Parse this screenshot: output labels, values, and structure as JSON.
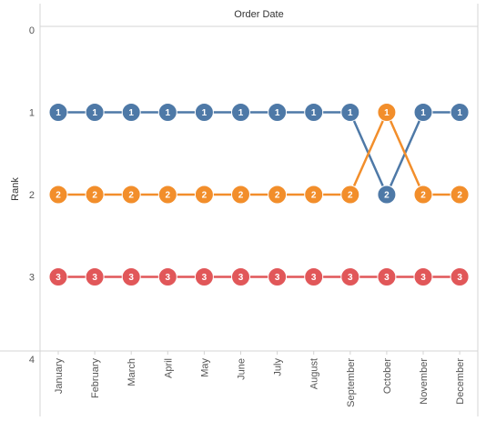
{
  "chart_data": {
    "type": "line",
    "title": "",
    "xlabel": "Order Date",
    "ylabel": "Rank",
    "categories": [
      "January",
      "February",
      "March",
      "April",
      "May",
      "June",
      "July",
      "August",
      "September",
      "October",
      "November",
      "December"
    ],
    "yticks": [
      "0",
      "1",
      "2",
      "3",
      "4"
    ],
    "ylim": [
      0,
      4
    ],
    "y_reversed": true,
    "series": [
      {
        "color": "#4e79a7",
        "values": [
          1,
          1,
          1,
          1,
          1,
          1,
          1,
          1,
          1,
          2,
          1,
          1
        ]
      },
      {
        "color": "#f28e2b",
        "values": [
          2,
          2,
          2,
          2,
          2,
          2,
          2,
          2,
          2,
          1,
          2,
          2
        ]
      },
      {
        "color": "#e15759",
        "values": [
          3,
          3,
          3,
          3,
          3,
          3,
          3,
          3,
          3,
          3,
          3,
          3
        ]
      }
    ],
    "point_labels": true,
    "grid": false,
    "legend": "none"
  }
}
